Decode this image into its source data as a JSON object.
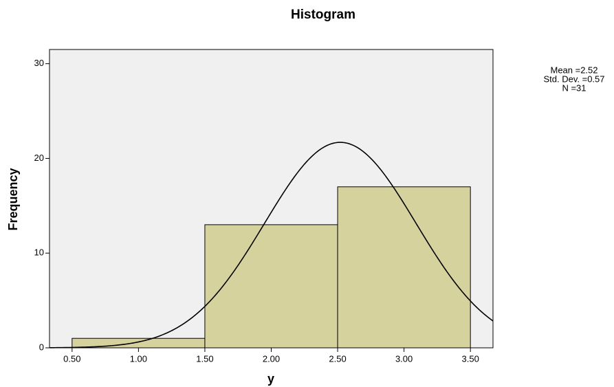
{
  "chart_data": {
    "type": "histogram",
    "title": "Histogram",
    "x_label": "y",
    "y_label": "Frequency",
    "bins": [
      0.5,
      1.5,
      2.5,
      3.5
    ],
    "counts": [
      1,
      13,
      17
    ],
    "color": "#d6d29e",
    "edge_color": "#000000",
    "plot_background": "#f0f0f0",
    "xlim": [
      0.33,
      3.67
    ],
    "ylim": [
      0,
      31.5
    ],
    "xticks": [
      {
        "value": 0.5,
        "label": "0.50"
      },
      {
        "value": 1,
        "label": "1.00"
      },
      {
        "value": 1.5,
        "label": "1.50"
      },
      {
        "value": 2,
        "label": "2.00"
      },
      {
        "value": 2.5,
        "label": "2.50"
      },
      {
        "value": 3,
        "label": "3.00"
      },
      {
        "value": 3.5,
        "label": "3.50"
      }
    ],
    "yticks": [
      0,
      10,
      20,
      30
    ],
    "stats": [
      {
        "value": 2.52,
        "label": "Mean =2.52"
      },
      {
        "value": 0.57,
        "label": "Std. Dev. =0.57"
      },
      {
        "value": 31,
        "label": "N =31"
      }
    ]
  }
}
